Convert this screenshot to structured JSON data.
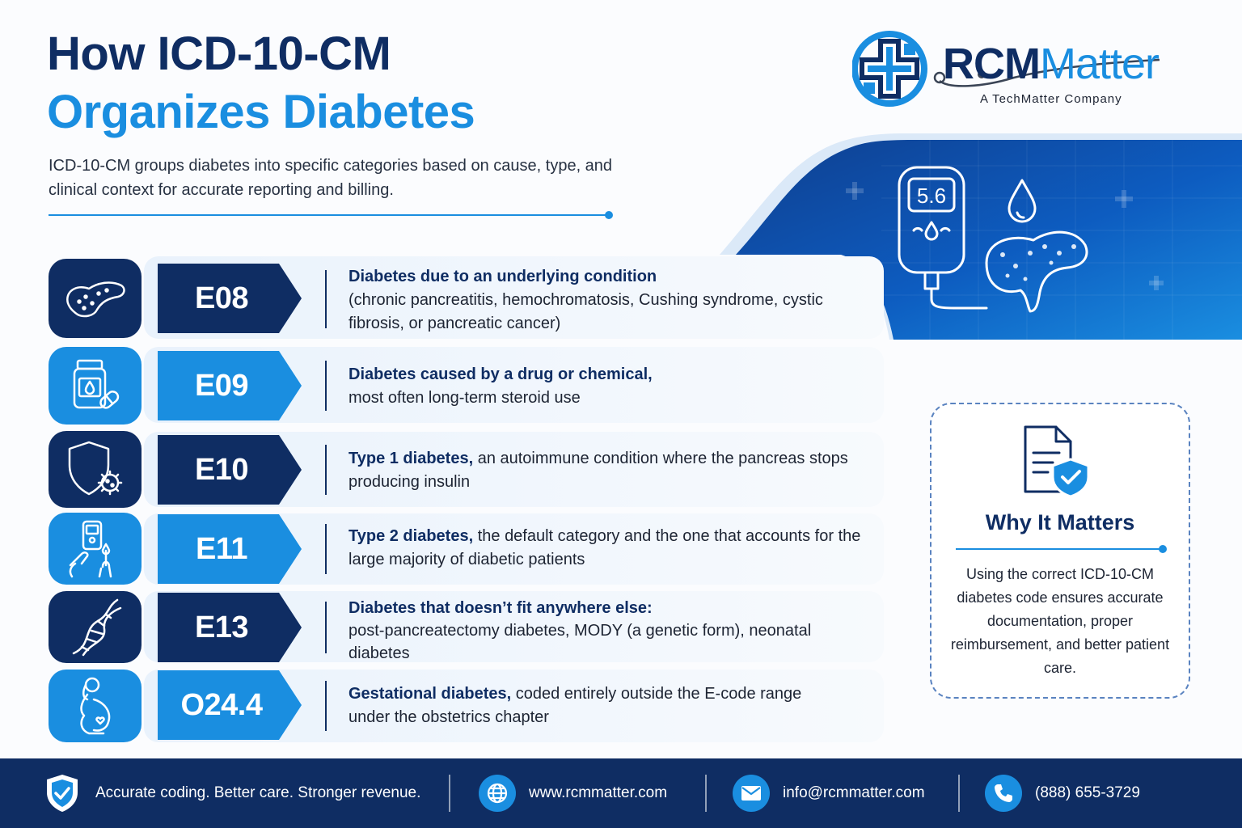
{
  "header": {
    "title_line1": "How ICD-10-CM",
    "title_line2": "Organizes Diabetes",
    "subtitle": "ICD-10-CM groups diabetes into specific categories based on cause, type, and clinical context for accurate reporting and billing."
  },
  "logo": {
    "name_bold": "RCM",
    "name_light": "Matter",
    "tagline": "A TechMatter Company"
  },
  "hero": {
    "meter_reading": "5.6"
  },
  "codes": [
    {
      "code": "E08",
      "icon": "pancreas-icon",
      "title": "Diabetes due to an underlying condition",
      "detail": "(chronic pancreatitis, hemochromatosis, Cushing syndrome, cystic fibrosis, or pancreatic cancer)"
    },
    {
      "code": "E09",
      "icon": "medicine-bottle-icon",
      "title": "Diabetes caused by a drug or chemical,",
      "detail": "most often long-term steroid use"
    },
    {
      "code": "E10",
      "icon": "shield-virus-icon",
      "title": "Type 1 diabetes,",
      "detail": "an autoimmune condition where the pancreas stops producing insulin"
    },
    {
      "code": "E11",
      "icon": "glucose-test-hand-icon",
      "title": "Type 2 diabetes,",
      "detail": "the default category and the one that accounts for the large majority of diabetic patients"
    },
    {
      "code": "E13",
      "icon": "dna-icon",
      "title": "Diabetes that doesn’t fit anywhere else:",
      "detail": "post-pancreatectomy diabetes, MODY (a genetic form), neonatal diabetes"
    },
    {
      "code": "O24.4",
      "icon": "pregnant-woman-icon",
      "title": "Gestational diabetes,",
      "detail": "coded entirely outside the E-code range under the obstetrics chapter"
    }
  ],
  "why": {
    "title": "Why It Matters",
    "body": "Using the correct ICD-10-CM diabetes code ensures accurate documentation, proper reimbursement, and better patient care."
  },
  "footer": {
    "tagline": "Accurate coding. Better care. Stronger revenue.",
    "website": "www.rcmmatter.com",
    "email": "info@rcmmatter.com",
    "phone": "(888) 655-3729"
  },
  "colors": {
    "navy": "#0f2d63",
    "blue": "#1a8ee0",
    "row_bg": "#e9f2fc"
  }
}
